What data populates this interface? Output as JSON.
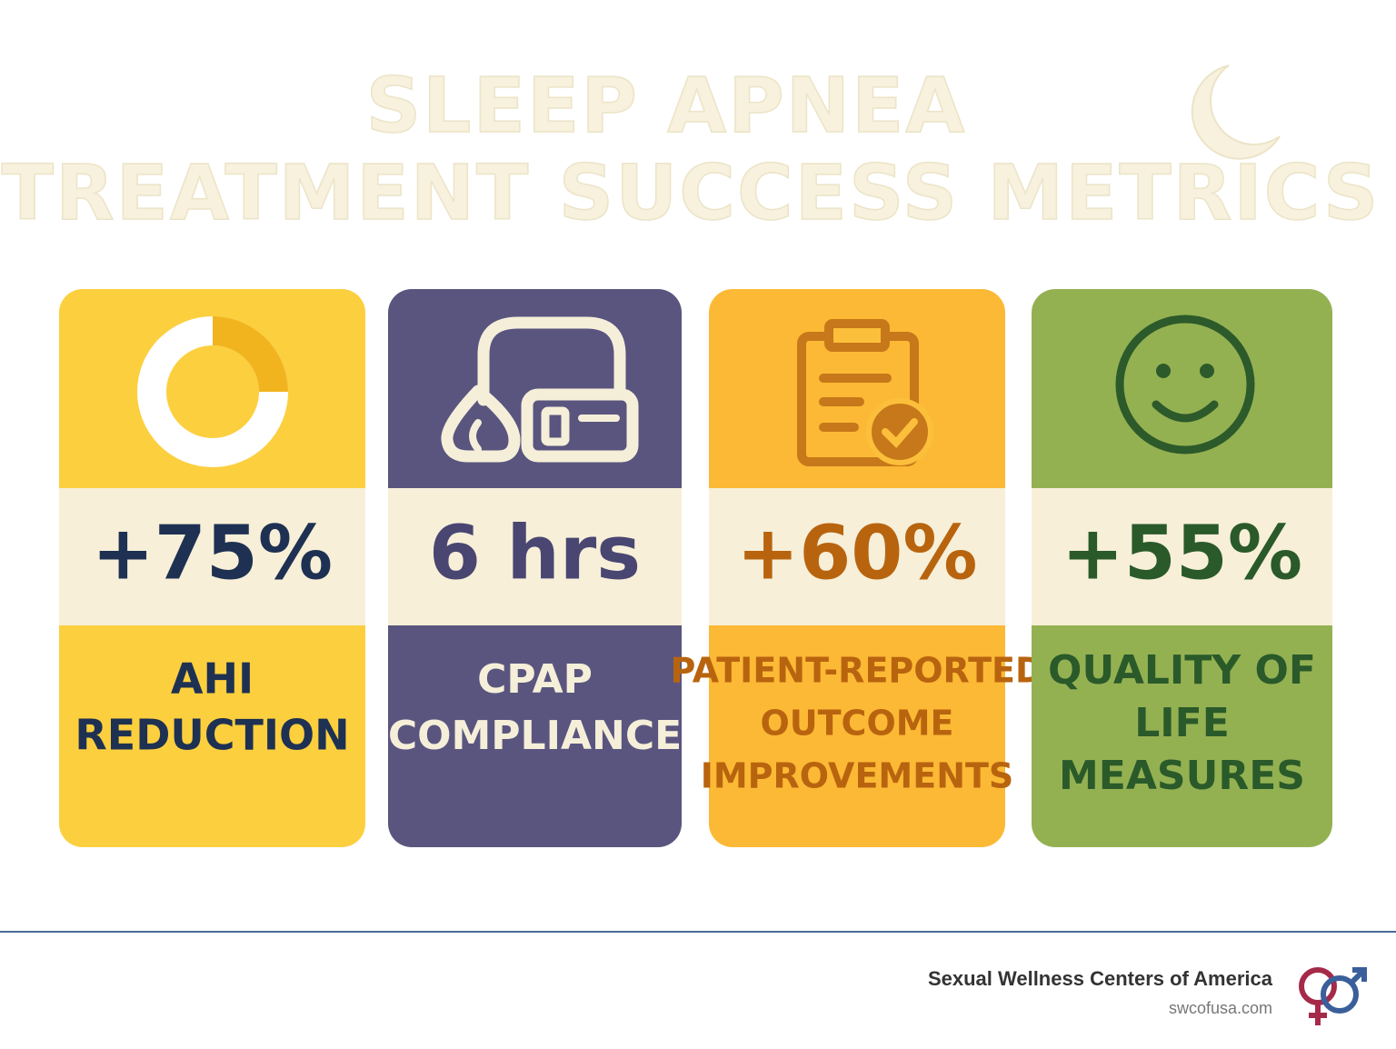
{
  "header": {
    "title": [
      "SLEEP APNEA",
      "TREATMENT SUCCESS METRICS"
    ]
  },
  "cards": [
    {
      "value": "+75%",
      "label": [
        "AHI",
        "REDUCTION"
      ]
    },
    {
      "value": "6 hrs",
      "label": [
        "CPAP",
        "COMPLIANCE"
      ]
    },
    {
      "value": "+60%",
      "label": [
        "PATIENT-REPORTED",
        "OUTCOME",
        "IMPROVEMENTS"
      ]
    },
    {
      "value": "+55%",
      "label": [
        "QUALITY OF",
        "LIFE",
        "MEASURES"
      ]
    }
  ],
  "footer": {
    "brand": "Sexual Wellness Centers of America",
    "url": "swcofusa.com"
  }
}
